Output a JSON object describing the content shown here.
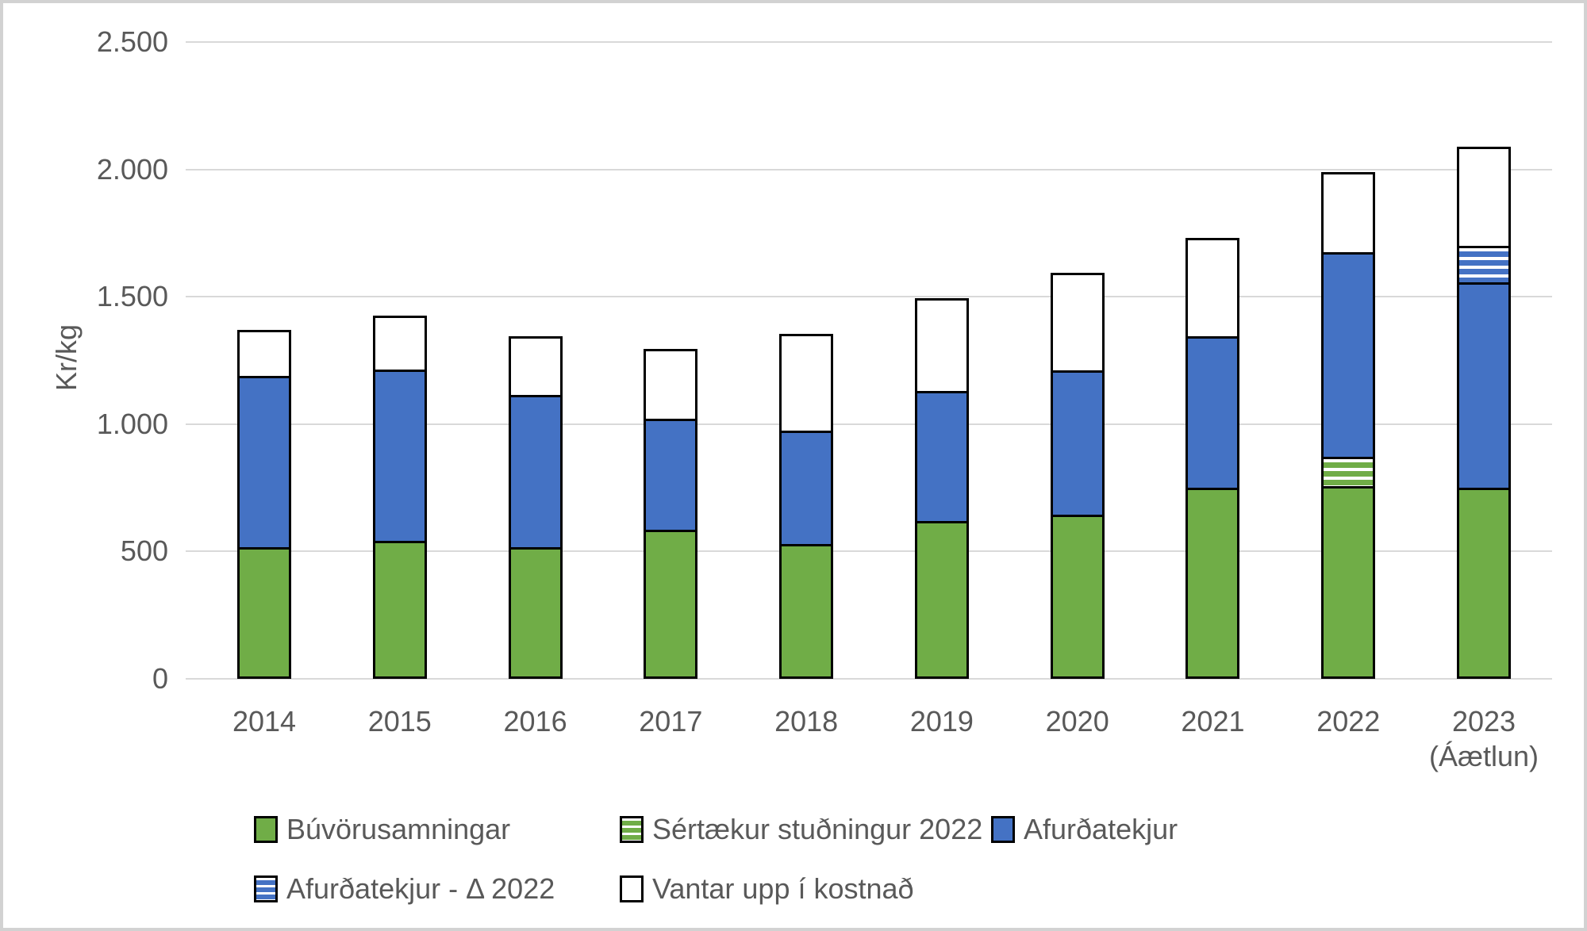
{
  "chart_data": {
    "type": "bar",
    "stacked": true,
    "title": "",
    "xlabel": "",
    "ylabel": "Kr/kg",
    "grid": true,
    "legend_position": "bottom",
    "y_axis": {
      "min": 0,
      "max": 2500,
      "step": 500,
      "ticks": [
        {
          "value": 0,
          "label": "0"
        },
        {
          "value": 500,
          "label": "500"
        },
        {
          "value": 1000,
          "label": "1.000"
        },
        {
          "value": 1500,
          "label": "1.500"
        },
        {
          "value": 2000,
          "label": "2.000"
        },
        {
          "value": 2500,
          "label": "2.500"
        }
      ]
    },
    "categories": [
      {
        "label": "2014",
        "sublabel": ""
      },
      {
        "label": "2015",
        "sublabel": ""
      },
      {
        "label": "2016",
        "sublabel": ""
      },
      {
        "label": "2017",
        "sublabel": ""
      },
      {
        "label": "2018",
        "sublabel": ""
      },
      {
        "label": "2019",
        "sublabel": ""
      },
      {
        "label": "2020",
        "sublabel": ""
      },
      {
        "label": "2021",
        "sublabel": ""
      },
      {
        "label": "2022",
        "sublabel": ""
      },
      {
        "label": "2023",
        "sublabel": "(Áætlun)"
      }
    ],
    "series": [
      {
        "name": "Búvörusamningar",
        "color": "#70AD47",
        "pattern": "solid",
        "values": [
          525,
          550,
          525,
          595,
          540,
          630,
          655,
          760,
          765,
          760
        ]
      },
      {
        "name": "Sértækur stuðningur 2022",
        "color": "#70AD47",
        "pattern": "striped",
        "values": [
          0,
          0,
          0,
          0,
          0,
          0,
          0,
          0,
          115,
          0
        ]
      },
      {
        "name": "Afurðatekjur",
        "color": "#4472C4",
        "pattern": "solid",
        "values": [
          675,
          675,
          600,
          435,
          445,
          510,
          565,
          595,
          805,
          805
        ]
      },
      {
        "name": "Afurðatekjur - Δ 2022",
        "color": "#4472C4",
        "pattern": "striped",
        "values": [
          0,
          0,
          0,
          0,
          0,
          0,
          0,
          0,
          0,
          145
        ]
      },
      {
        "name": "Vantar upp í kostnað",
        "color": "#FFFFFF",
        "pattern": "solid",
        "values": [
          170,
          200,
          220,
          265,
          370,
          355,
          375,
          375,
          305,
          380
        ]
      }
    ],
    "stack_totals": [
      1370,
      1425,
      1345,
      1295,
      1355,
      1495,
      1595,
      1730,
      1990,
      2090
    ],
    "legend_rows": [
      [
        0,
        1,
        2
      ],
      [
        3,
        4
      ]
    ],
    "colors": {
      "green": "#70AD47",
      "blue": "#4472C4",
      "segment_border": "#000000",
      "gridline": "#D9D9D9",
      "axis_text": "#595959",
      "frame_border": "#D2D2D2",
      "background": "#FFFFFF"
    }
  }
}
